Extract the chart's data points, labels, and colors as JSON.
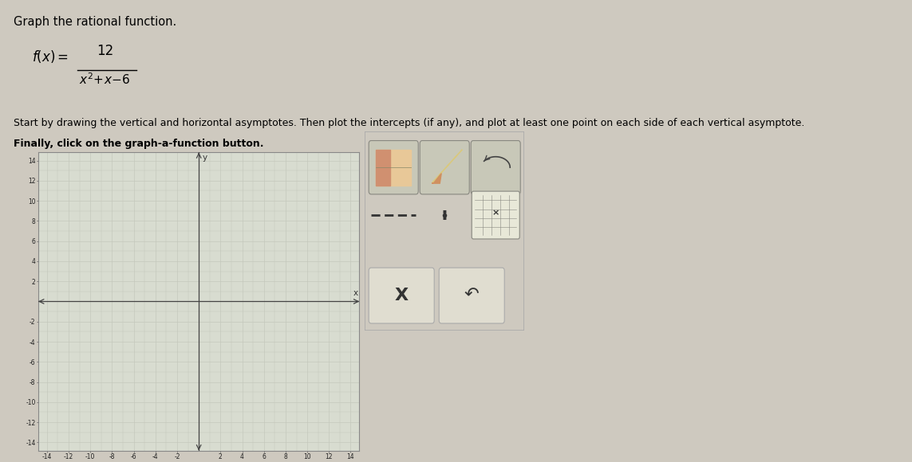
{
  "title_text": "Graph the rational function.",
  "instruction_text": "Start by drawing the vertical and horizontal asymptotes. Then plot the intercepts (if any), and plot at least one point on each side of each vertical asymptote.\nFinally, click on the graph-a-function button.",
  "xlim": [
    -14,
    14
  ],
  "ylim": [
    -14,
    14
  ],
  "xticks": [
    -14,
    -12,
    -10,
    -8,
    -6,
    -4,
    -2,
    2,
    4,
    6,
    8,
    10,
    12,
    14
  ],
  "yticks": [
    -14,
    -12,
    -10,
    -8,
    -6,
    -4,
    -2,
    2,
    4,
    6,
    8,
    10,
    12,
    14
  ],
  "bg_color": "#dde0d4",
  "grid_color_minor": "#c5c8bc",
  "grid_color_major": "#b8bbb0",
  "axis_color": "#444444",
  "outer_bg": "#cec9bf",
  "graph_bg": "#d8dcd0"
}
